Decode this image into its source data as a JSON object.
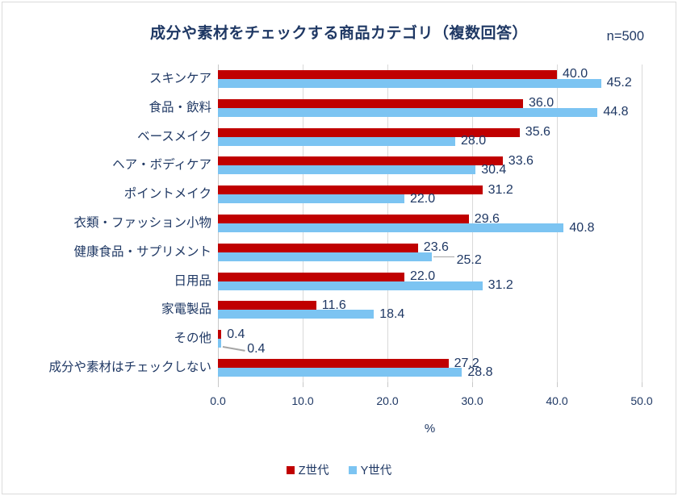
{
  "title": "成分や素材をチェックする商品カテゴリ（複数回答）",
  "sample_size": "n=500",
  "colors": {
    "z_series": "#C00000",
    "y_series": "#7CC4F2",
    "text": "#1F3864",
    "gridline": "#D9D9D9",
    "leader_line": "#A6A6A6"
  },
  "chart_data": {
    "type": "bar",
    "orientation": "horizontal",
    "title": "成分や素材をチェックする商品カテゴリ（複数回答）",
    "subtitle": "n=500",
    "categories": [
      "スキンケア",
      "食品・飲料",
      "ベースメイク",
      "ヘア・ボディケア",
      "ポイントメイク",
      "衣類・ファッション小物",
      "健康食品・サプリメント",
      "日用品",
      "家電製品",
      "その他",
      "成分や素材はチェックしない"
    ],
    "series": [
      {
        "name": "Z世代",
        "color": "#C00000",
        "values": [
          40.0,
          36.0,
          35.6,
          33.6,
          31.2,
          29.6,
          23.6,
          22.0,
          11.6,
          0.4,
          27.2
        ]
      },
      {
        "name": "Y世代",
        "color": "#7CC4F2",
        "values": [
          45.2,
          44.8,
          28.0,
          30.4,
          22.0,
          40.8,
          25.2,
          31.2,
          18.4,
          0.4,
          28.8
        ]
      }
    ],
    "xlabel": "%",
    "xlim": [
      0,
      50
    ],
    "xticks": [
      "0.0",
      "10.0",
      "20.0",
      "30.0",
      "40.0",
      "50.0"
    ],
    "grid": "vertical",
    "legend_position": "bottom",
    "label_leader_lines": [
      {
        "category_index": 6,
        "series": "Y世代"
      },
      {
        "category_index": 9,
        "series": "Y世代"
      }
    ]
  }
}
